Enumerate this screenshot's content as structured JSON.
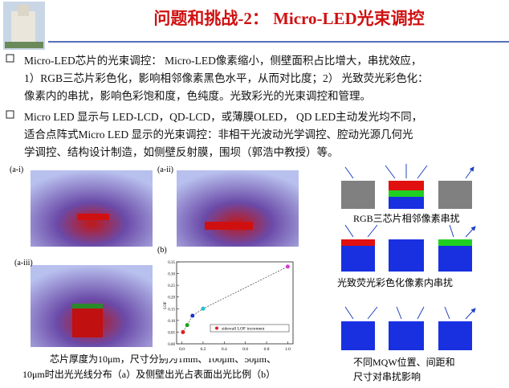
{
  "header": {
    "title": "问题和挑战-2： Micro-LED光束调控"
  },
  "bullets": [
    {
      "lines": [
        "Micro-LED芯片的光束调控： Micro-LED像素缩小，侧壁面积占比增大，串扰效应，",
        "1）RGB三芯片彩色化，影响相邻像素黑色水平，从而对比度；2） 光致荧光彩色化：",
        "像素内的串扰，影响色彩饱和度，色纯度。光致彩光的光束调控和管理。"
      ]
    },
    {
      "lines": [
        "Micro LED 显示与 LED-LCD，QD-LCD，或薄膜OLED， QD LED主动发光均不同，",
        "适合点阵式Micro LED 显示的光束调控：非相干光波动光学调控、腔动光源几何光",
        "学调控、结构设计制造，如侧壁反射膜，围坝（郭浩中教授）等。"
      ]
    }
  ],
  "panels": [
    "(a-i)",
    "(a-ii)",
    "(a-iii)",
    "(b)"
  ],
  "caption": [
    "芯片厚度为10μm，尺寸分别为1mm、100μm、50μm、",
    "10μm时出光光线分布（a）及侧壁出光占表面出光比例（b）"
  ],
  "diagrams": [
    {
      "lines": [
        "RGB三芯片相邻像素串扰"
      ]
    },
    {
      "lines": [
        "光致荧光彩色化像素内串扰"
      ]
    },
    {
      "lines": [
        "不同MQW位置、间距和",
        "尺寸对串扰影响"
      ]
    }
  ],
  "chart_data": {
    "type": "scatter",
    "y_label": "LOF",
    "x": [
      0.01,
      0.05,
      0.1,
      0.2,
      1.0
    ],
    "series": [
      {
        "name": "sidewall LOF increment",
        "values": [
          0.05,
          0.08,
          0.12,
          0.15,
          0.33
        ],
        "colors": [
          "#e02020",
          "#20a020",
          "#2030d0",
          "#20c0d0",
          "#d040d0"
        ]
      }
    ],
    "xlim": [
      -0.05,
      1.05
    ],
    "ylim": [
      0,
      0.35
    ],
    "xticks": [
      {
        "value": 0,
        "label": "0.0"
      },
      0.2,
      0.4,
      0.6,
      0.8,
      {
        "value": 1,
        "label": "1.0"
      }
    ],
    "yticks": [
      {
        "value": 0,
        "label": "0.00"
      },
      0.05,
      {
        "value": 0.1,
        "label": "0.10"
      },
      0.15,
      {
        "value": 0.2,
        "label": "0.20"
      },
      0.25,
      {
        "value": 0.3,
        "label": "0.30"
      },
      0.35
    ]
  }
}
